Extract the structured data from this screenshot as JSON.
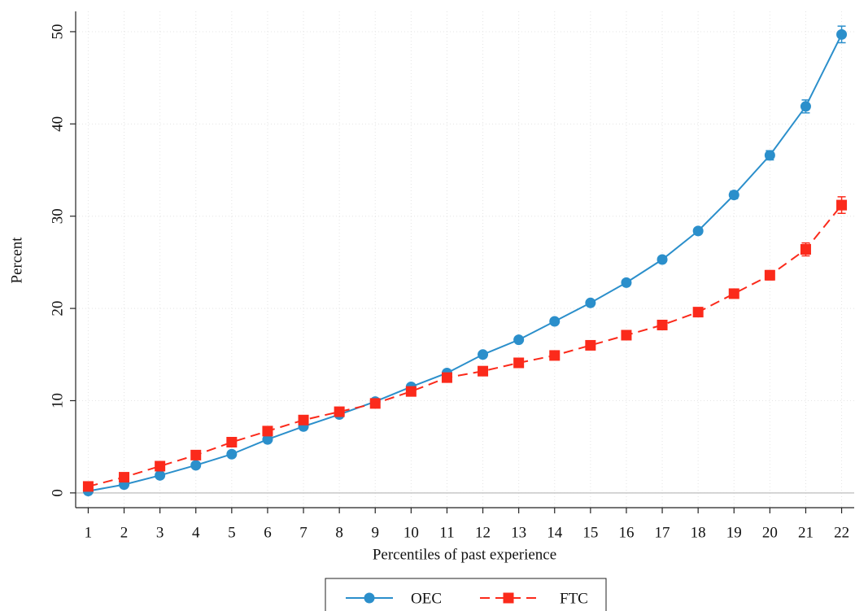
{
  "chart_data": {
    "type": "line",
    "x_label": "Percentiles of past experience",
    "y_label": "Percent",
    "x": [
      1,
      2,
      3,
      4,
      5,
      6,
      7,
      8,
      9,
      10,
      11,
      12,
      13,
      14,
      15,
      16,
      17,
      18,
      19,
      20,
      21,
      22
    ],
    "series": [
      {
        "name": "OEC",
        "color": "#2b8fcb",
        "marker": "circle",
        "dash": "solid",
        "values": [
          0.2,
          0.9,
          1.9,
          3.0,
          4.2,
          5.8,
          7.2,
          8.5,
          9.9,
          11.5,
          13.0,
          15.0,
          16.6,
          18.6,
          20.6,
          22.8,
          25.3,
          28.4,
          32.3,
          36.6,
          41.9,
          49.7
        ],
        "errors": [
          0.1,
          0.1,
          0.1,
          0.1,
          0.1,
          0.1,
          0.1,
          0.1,
          0.1,
          0.2,
          0.2,
          0.2,
          0.2,
          0.2,
          0.2,
          0.3,
          0.3,
          0.3,
          0.4,
          0.5,
          0.7,
          0.9
        ]
      },
      {
        "name": "FTC",
        "color": "#fb2a1b",
        "marker": "square",
        "dash": "dashed",
        "values": [
          0.7,
          1.7,
          2.9,
          4.1,
          5.5,
          6.7,
          7.9,
          8.8,
          9.7,
          11.0,
          12.5,
          13.2,
          14.1,
          14.9,
          16.0,
          17.1,
          18.2,
          19.6,
          21.6,
          23.6,
          26.4,
          31.2
        ],
        "errors": [
          0.1,
          0.1,
          0.1,
          0.1,
          0.1,
          0.1,
          0.1,
          0.1,
          0.1,
          0.2,
          0.2,
          0.2,
          0.2,
          0.2,
          0.2,
          0.2,
          0.3,
          0.3,
          0.4,
          0.5,
          0.7,
          0.9
        ]
      }
    ],
    "xlim": [
      0.65,
      22.35
    ],
    "ylim": [
      -1.6,
      52.2
    ],
    "xticks": [
      1,
      2,
      3,
      4,
      5,
      6,
      7,
      8,
      9,
      10,
      11,
      12,
      13,
      14,
      15,
      16,
      17,
      18,
      19,
      20,
      21,
      22
    ],
    "yticks": [
      0,
      10,
      20,
      30,
      40,
      50
    ],
    "grid": true,
    "reference_line": 0,
    "legend": "bottom"
  }
}
